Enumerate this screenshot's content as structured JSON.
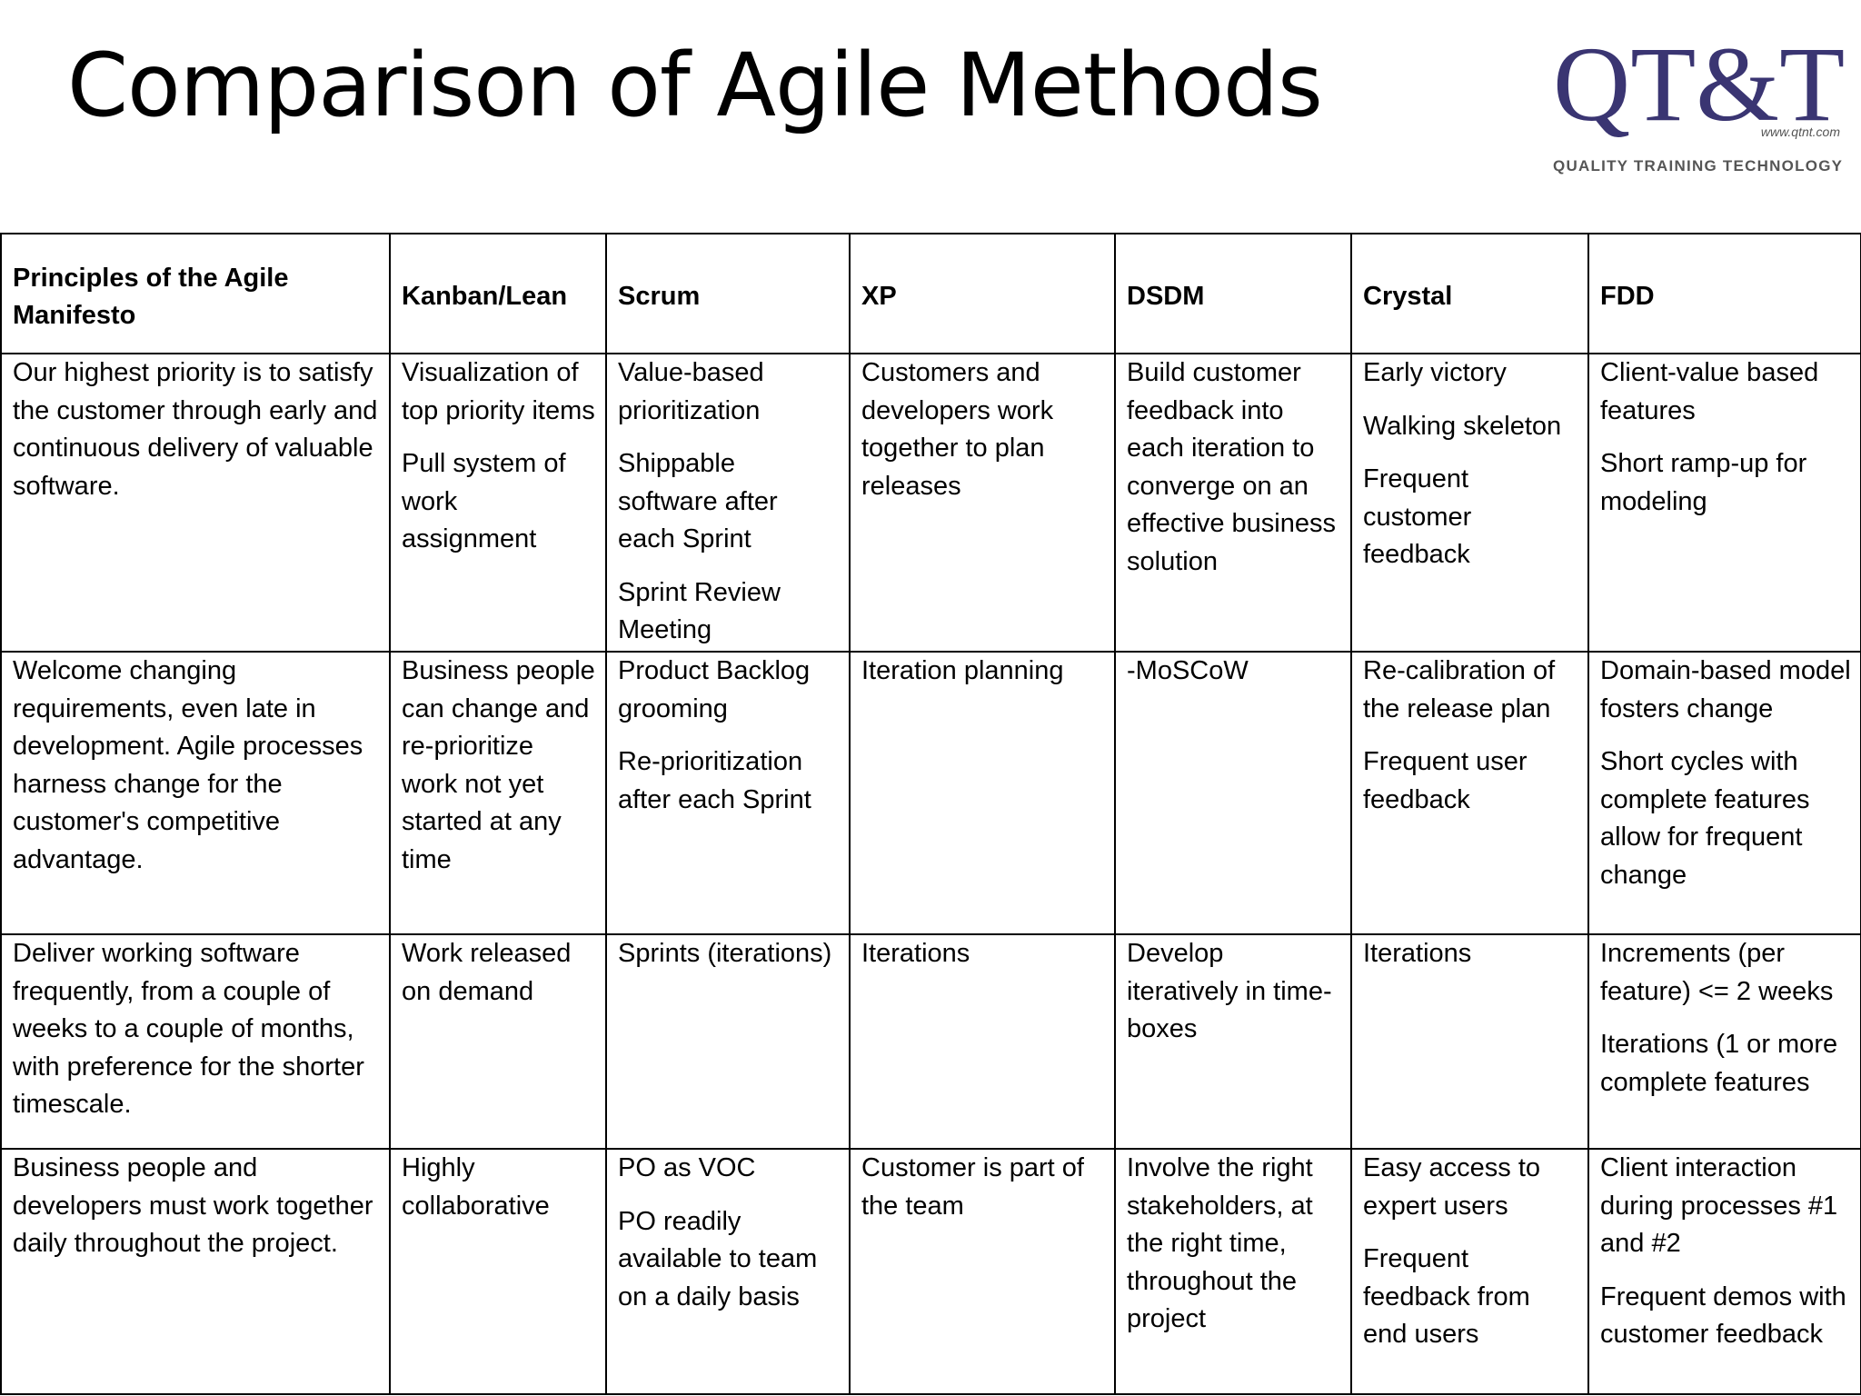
{
  "header": {
    "title": "Comparison of Agile Methods",
    "logo": {
      "mark": "QT&T",
      "url": "www.qtnt.com",
      "tagline": "QUALITY TRAINING TECHNOLOGY"
    }
  },
  "table": {
    "header": [
      "Principles of the Agile Manifesto",
      "Kanban/Lean",
      "Scrum",
      "XP",
      "DSDM",
      "Crystal",
      "FDD"
    ],
    "rows": [
      [
        [
          "Our highest priority is to satisfy the customer through early and continuous delivery of valuable software."
        ],
        [
          "Visualization of top priority items",
          "Pull system of work assignment"
        ],
        [
          "Value-based prioritization",
          "Shippable software after each Sprint",
          "Sprint Review Meeting"
        ],
        [
          "Customers and developers work together to plan releases"
        ],
        [
          "Build customer feedback into each iteration to converge on an effective business solution"
        ],
        [
          "Early victory",
          "Walking skeleton",
          "Frequent customer feedback"
        ],
        [
          "Client-value based features",
          "Short ramp-up for modeling"
        ]
      ],
      [
        [
          "Welcome changing requirements, even late in development. Agile processes harness change for the customer's competitive advantage."
        ],
        [
          "Business people can change and re-prioritize work not yet started at any time"
        ],
        [
          "Product Backlog grooming",
          "Re-prioritization after each Sprint"
        ],
        [
          "Iteration planning"
        ],
        [
          "-MoSCoW"
        ],
        [
          "Re-calibration of the release plan",
          "Frequent user feedback"
        ],
        [
          "Domain-based model fosters change",
          "Short cycles with complete features allow for frequent change"
        ]
      ],
      [
        [
          "Deliver working software frequently, from a couple of weeks to a couple of months, with preference for the shorter timescale."
        ],
        [
          "Work released on demand"
        ],
        [
          "Sprints (iterations)"
        ],
        [
          "Iterations"
        ],
        [
          "Develop iteratively in time-boxes"
        ],
        [
          "Iterations"
        ],
        [
          "Increments (per feature) <= 2 weeks",
          "Iterations (1 or more complete features"
        ]
      ],
      [
        [
          "Business people and developers must work together daily throughout the project."
        ],
        [
          "Highly collaborative"
        ],
        [
          "PO as VOC",
          "PO readily available to team on a daily basis"
        ],
        [
          "Customer is part of the team"
        ],
        [
          "Involve the right stakeholders, at the right time, throughout the project"
        ],
        [
          "Easy access to expert users",
          "Frequent feedback from end users"
        ],
        [
          "Client interaction during processes #1 and #2",
          "Frequent demos with customer feedback"
        ]
      ]
    ]
  }
}
